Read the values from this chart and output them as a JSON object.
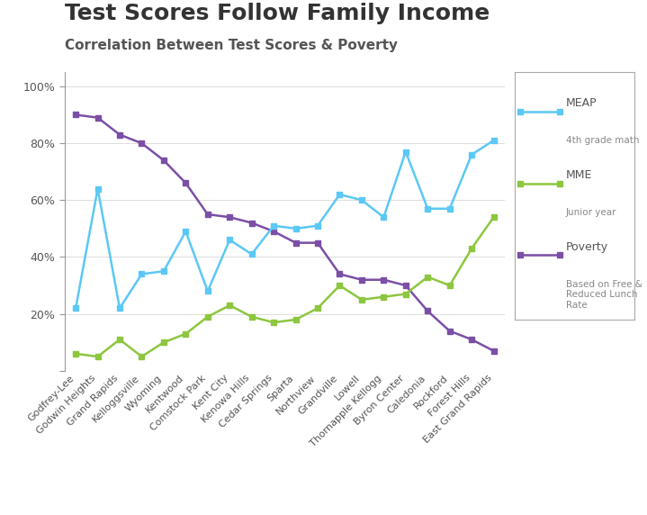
{
  "title": "Test Scores Follow Family Income",
  "subtitle": "Correlation Between Test Scores & Poverty",
  "categories": [
    "Godfrey-Lee",
    "Godwin Heights",
    "Grand Rapids",
    "Kelloggsville",
    "Wyoming",
    "Kentwood",
    "Comstock Park",
    "Kent City",
    "Kenowa Hills",
    "Cedar Springs",
    "Sparta",
    "Northview",
    "Grandville",
    "Lowell",
    "Thornapple Kellogg",
    "Byron Center",
    "Caledonia",
    "Rockford",
    "Forest Hills",
    "East Grand Rapids"
  ],
  "meap": [
    22,
    64,
    22,
    34,
    35,
    49,
    28,
    46,
    41,
    51,
    50,
    51,
    62,
    60,
    54,
    77,
    57,
    57,
    76,
    81
  ],
  "mme": [
    6,
    5,
    11,
    5,
    10,
    13,
    19,
    23,
    19,
    17,
    18,
    22,
    30,
    25,
    26,
    27,
    33,
    30,
    43,
    54
  ],
  "poverty": [
    90,
    89,
    83,
    80,
    74,
    66,
    55,
    54,
    52,
    49,
    45,
    45,
    34,
    32,
    32,
    30,
    21,
    14,
    11,
    7
  ],
  "meap_color": "#5bc8f5",
  "mme_color": "#8dc63f",
  "poverty_color": "#7b4fa6",
  "bg_color": "#ffffff",
  "yticks": [
    0,
    20,
    40,
    60,
    80,
    100
  ],
  "ytick_labels": [
    "",
    "20%",
    "40%",
    "60%",
    "80%",
    "100%"
  ]
}
